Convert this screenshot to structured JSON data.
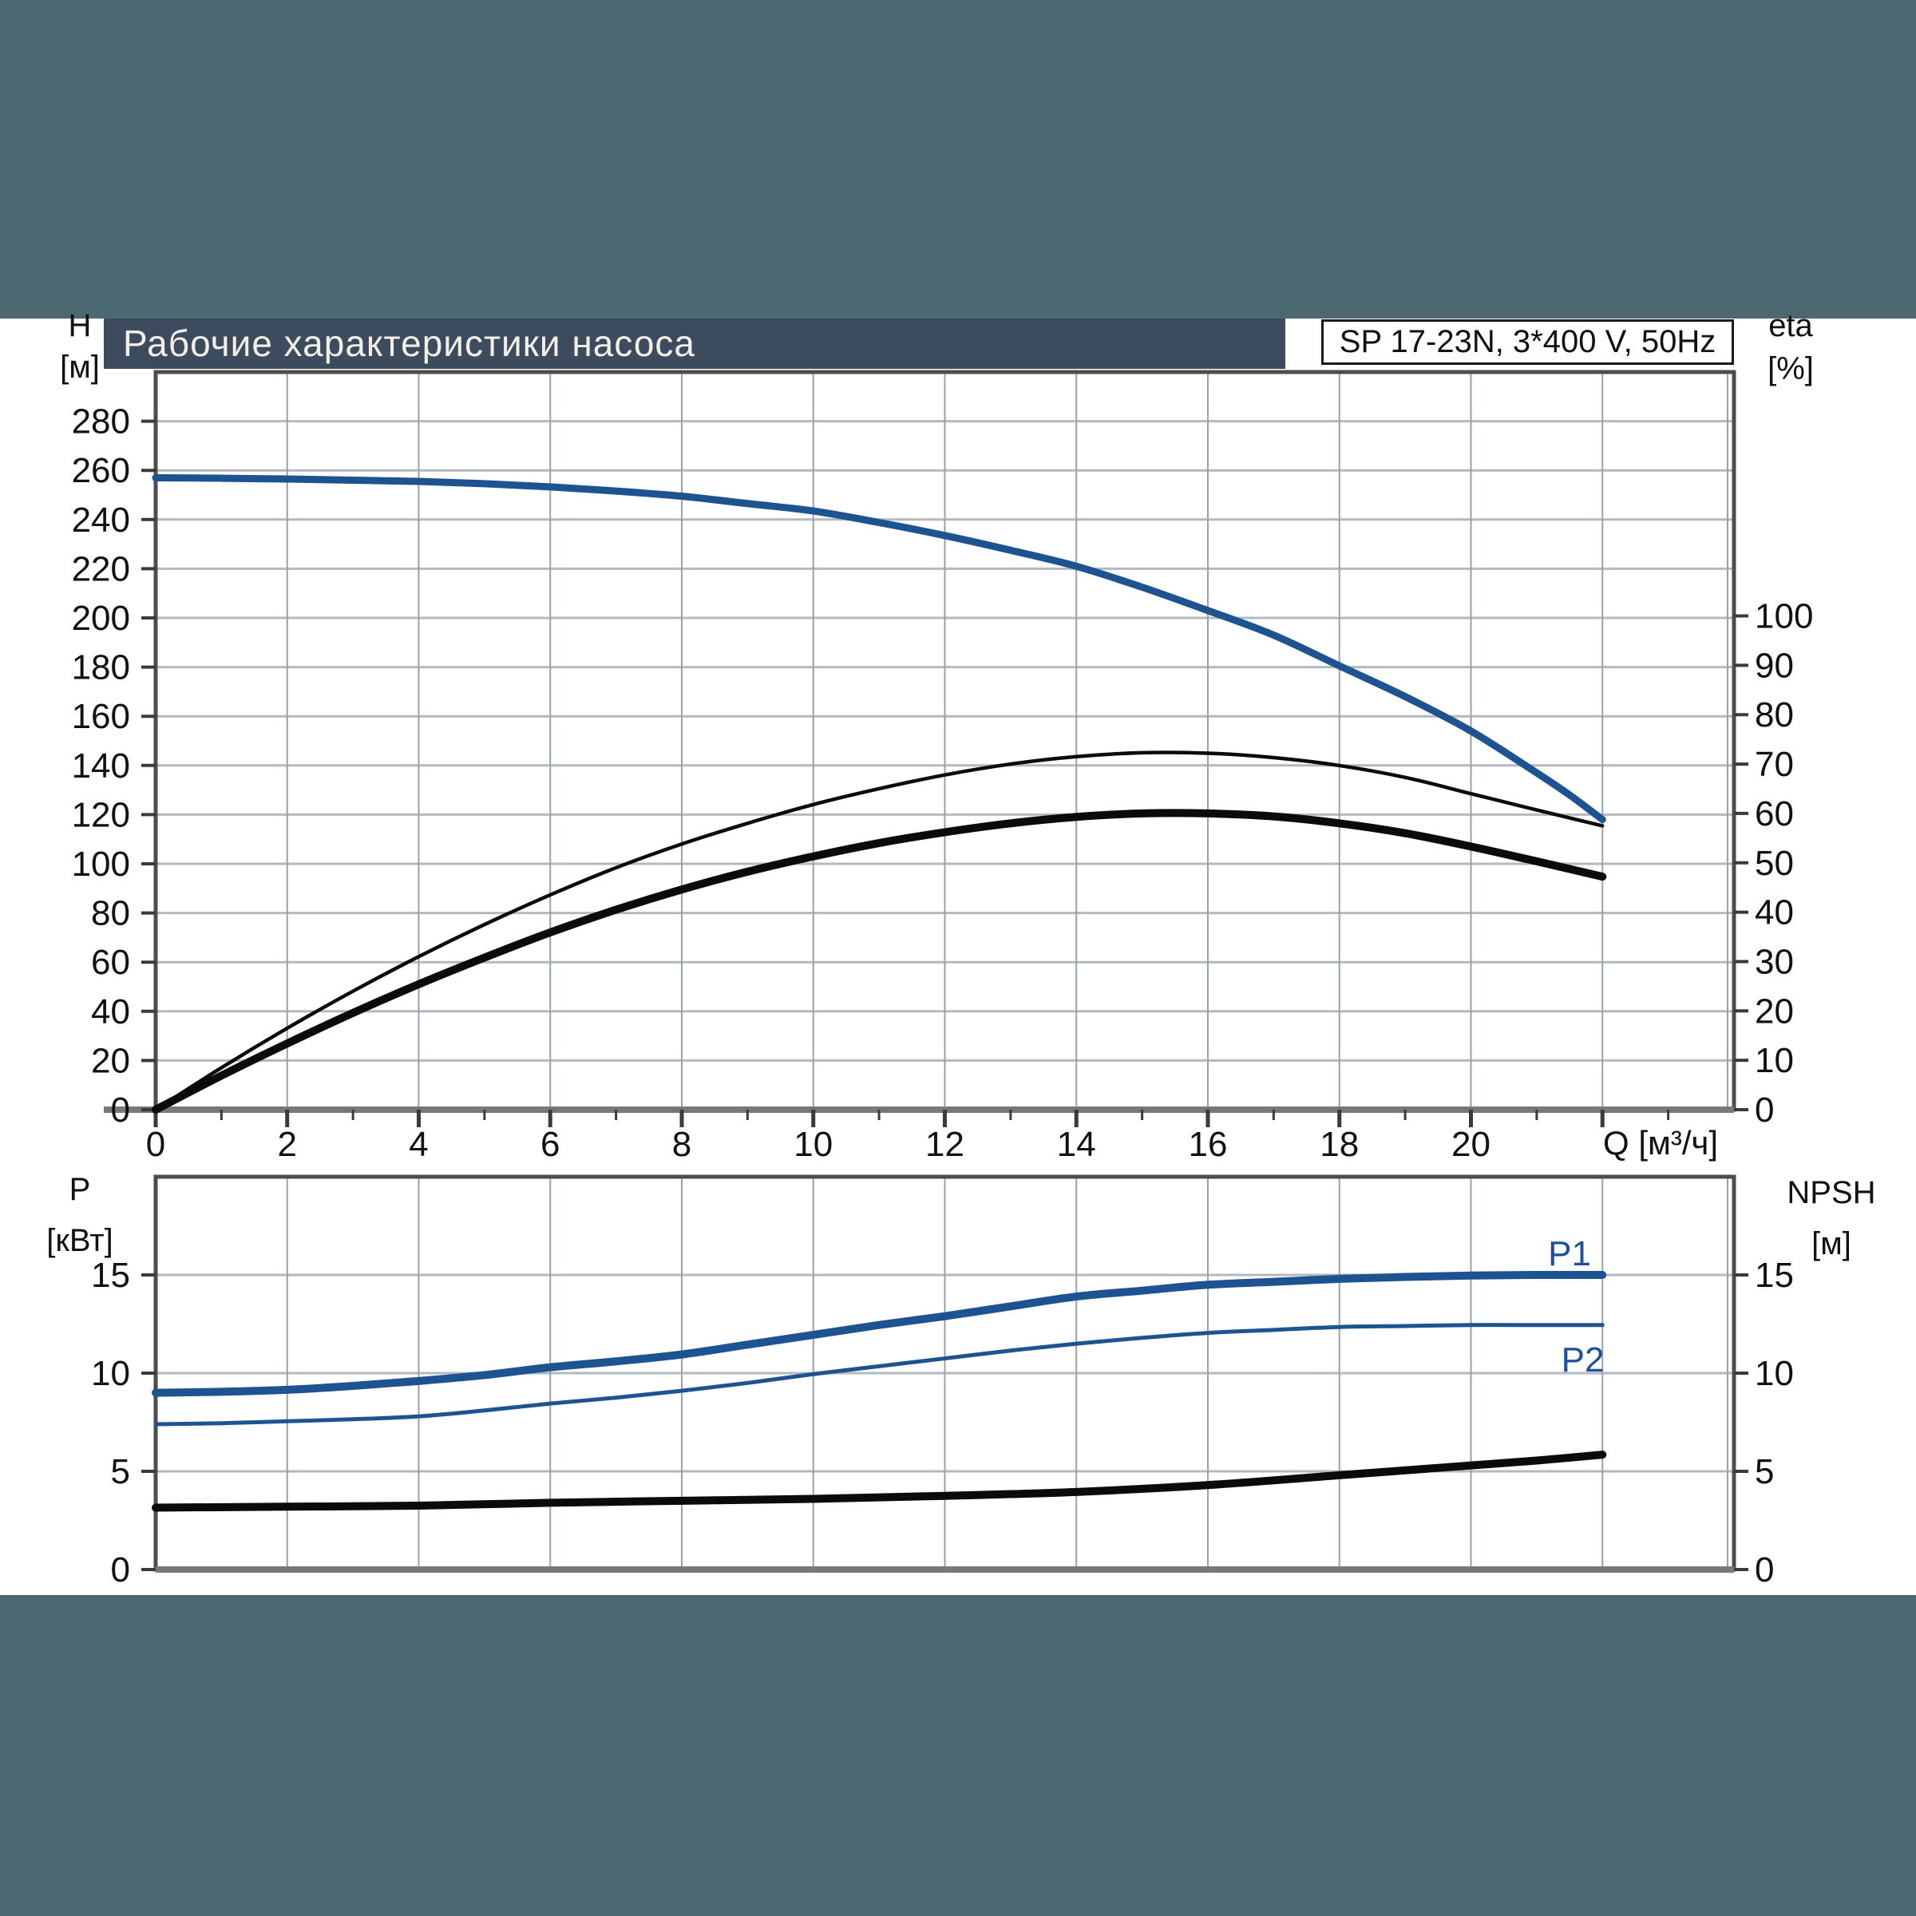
{
  "page": {
    "background_color": "#4c6871",
    "panel_color": "#ffffff"
  },
  "header": {
    "title": "Рабочие характеристики насоса",
    "title_bg": "#3c4b5e",
    "title_color": "#f3efe7",
    "model": "SP 17-23N, 3*400 V, 50Hz"
  },
  "colors": {
    "curve_blue": "#1d5390",
    "curve_black": "#0b0b0b",
    "label_blue": "#1d4f9a",
    "grid_h": "#b3b9bf",
    "grid_v": "#9aa1a9",
    "frame": "#4d4d4d",
    "axis_gray": "#787878",
    "tick": "#3a3a3a",
    "text": "#111111"
  },
  "chart_data": [
    {
      "id": "pump-performance",
      "type": "line",
      "x_axis": {
        "label": "Q [м³/ч]",
        "min": 0,
        "max": 24,
        "labeled_ticks": [
          0,
          2,
          4,
          6,
          8,
          10,
          12,
          14,
          16,
          18,
          20
        ],
        "major_ticks": [
          0,
          2,
          4,
          6,
          8,
          10,
          12,
          14,
          16,
          18,
          20,
          22
        ],
        "minor_ticks": [
          1,
          3,
          5,
          7,
          9,
          11,
          13,
          15,
          17,
          19,
          21,
          23
        ],
        "gridlines": [
          2,
          4,
          6,
          8,
          10,
          12,
          14,
          16,
          18,
          20,
          22
        ],
        "grid_on": true
      },
      "y_left": {
        "label": "H",
        "unit": "[м]",
        "min": 0,
        "max": 300,
        "ticks": [
          0,
          20,
          40,
          60,
          80,
          100,
          120,
          140,
          160,
          180,
          200,
          220,
          240,
          260,
          280
        ],
        "gridlines": [
          20,
          40,
          60,
          80,
          100,
          120,
          140,
          160,
          180,
          200,
          220,
          240,
          260,
          280
        ]
      },
      "y_right": {
        "label": "eta",
        "unit": "[%]",
        "min": 0,
        "max": 149.4,
        "ticks": [
          0,
          10,
          20,
          30,
          40,
          50,
          60,
          70,
          80,
          90,
          100
        ]
      },
      "series": [
        {
          "name": "head-curve",
          "axis": "left",
          "color": "#1d5390",
          "width": 9,
          "points": [
            [
              0,
              257
            ],
            [
              1,
              256.8
            ],
            [
              2,
              256.5
            ],
            [
              3,
              256
            ],
            [
              4,
              255.5
            ],
            [
              5,
              254.6
            ],
            [
              6,
              253.3
            ],
            [
              7,
              251.6
            ],
            [
              8,
              249.5
            ],
            [
              9,
              246.5
            ],
            [
              10,
              243.5
            ],
            [
              11,
              238.8
            ],
            [
              12,
              233.5
            ],
            [
              13,
              227.5
            ],
            [
              14,
              221
            ],
            [
              15,
              212.5
            ],
            [
              16,
              203
            ],
            [
              17,
              193
            ],
            [
              18,
              180.5
            ],
            [
              19,
              168
            ],
            [
              20,
              154
            ],
            [
              21,
              137
            ],
            [
              21.5,
              128
            ],
            [
              22,
              118
            ]
          ]
        },
        {
          "name": "eta-pump-curve",
          "axis": "right",
          "color": "#0b0b0b",
          "width": 4.5,
          "points": [
            [
              0,
              0
            ],
            [
              1,
              8.5
            ],
            [
              2,
              16.5
            ],
            [
              3,
              24
            ],
            [
              4,
              31
            ],
            [
              5,
              37.5
            ],
            [
              6,
              43.5
            ],
            [
              7,
              49
            ],
            [
              8,
              53.8
            ],
            [
              9,
              58
            ],
            [
              10,
              61.8
            ],
            [
              11,
              65
            ],
            [
              12,
              67.8
            ],
            [
              13,
              70
            ],
            [
              14,
              71.5
            ],
            [
              15,
              72.3
            ],
            [
              16,
              72.2
            ],
            [
              17,
              71.3
            ],
            [
              18,
              69.7
            ],
            [
              19,
              67.3
            ],
            [
              20,
              64
            ],
            [
              21,
              60.7
            ],
            [
              22,
              57.5
            ]
          ]
        },
        {
          "name": "eta-total-curve",
          "axis": "right",
          "color": "#0b0b0b",
          "width": 10,
          "points": [
            [
              0,
              0
            ],
            [
              1,
              6.9
            ],
            [
              2,
              13.4
            ],
            [
              3,
              19.6
            ],
            [
              4,
              25.4
            ],
            [
              5,
              30.8
            ],
            [
              6,
              35.9
            ],
            [
              7,
              40.5
            ],
            [
              8,
              44.6
            ],
            [
              9,
              48.2
            ],
            [
              10,
              51.3
            ],
            [
              11,
              54
            ],
            [
              12,
              56.2
            ],
            [
              13,
              58
            ],
            [
              14,
              59.3
            ],
            [
              15,
              60
            ],
            [
              16,
              60
            ],
            [
              17,
              59.4
            ],
            [
              18,
              58
            ],
            [
              19,
              56
            ],
            [
              20,
              53.3
            ],
            [
              21,
              50.3
            ],
            [
              22,
              47.2
            ]
          ]
        }
      ]
    },
    {
      "id": "power-npsh",
      "type": "line",
      "x_axis": {
        "label": "",
        "min": 0,
        "max": 24,
        "labeled_ticks": [],
        "major_ticks": [],
        "minor_ticks": [],
        "gridlines": [
          2,
          4,
          6,
          8,
          10,
          12,
          14,
          16,
          18,
          20,
          22
        ],
        "grid_on": true
      },
      "y_left": {
        "label": "P",
        "unit": "[кВт]",
        "min": 0,
        "max": 20,
        "ticks": [
          0,
          5,
          10,
          15
        ],
        "gridlines": [
          5,
          10,
          15
        ]
      },
      "y_right": {
        "label": "NPSH",
        "unit": "[м]",
        "min": 0,
        "max": 20,
        "ticks": [
          0,
          5,
          10,
          15
        ]
      },
      "series": [
        {
          "name": "p1-curve",
          "axis": "left",
          "color": "#1d5390",
          "width": 10,
          "curve_label": {
            "text": "P1",
            "q": 21.5,
            "v": 16.1
          },
          "points": [
            [
              0,
              9.0
            ],
            [
              1,
              9.05
            ],
            [
              2,
              9.15
            ],
            [
              3,
              9.35
            ],
            [
              4,
              9.6
            ],
            [
              5,
              9.9
            ],
            [
              6,
              10.3
            ],
            [
              7,
              10.6
            ],
            [
              8,
              10.95
            ],
            [
              9,
              11.45
            ],
            [
              10,
              11.95
            ],
            [
              11,
              12.45
            ],
            [
              12,
              12.9
            ],
            [
              13,
              13.4
            ],
            [
              14,
              13.9
            ],
            [
              15,
              14.2
            ],
            [
              16,
              14.5
            ],
            [
              17,
              14.65
            ],
            [
              18,
              14.8
            ],
            [
              19,
              14.9
            ],
            [
              20,
              14.97
            ],
            [
              21,
              15.0
            ],
            [
              22,
              15.0
            ]
          ]
        },
        {
          "name": "p2-curve",
          "axis": "left",
          "color": "#1d5390",
          "width": 5,
          "curve_label": {
            "text": "P2",
            "q": 21.7,
            "v": 10.7
          },
          "points": [
            [
              0,
              7.4
            ],
            [
              1,
              7.45
            ],
            [
              2,
              7.55
            ],
            [
              3,
              7.65
            ],
            [
              4,
              7.8
            ],
            [
              5,
              8.1
            ],
            [
              6,
              8.45
            ],
            [
              7,
              8.75
            ],
            [
              8,
              9.1
            ],
            [
              9,
              9.5
            ],
            [
              10,
              9.95
            ],
            [
              11,
              10.35
            ],
            [
              12,
              10.75
            ],
            [
              13,
              11.15
            ],
            [
              14,
              11.5
            ],
            [
              15,
              11.8
            ],
            [
              16,
              12.05
            ],
            [
              17,
              12.2
            ],
            [
              18,
              12.35
            ],
            [
              19,
              12.4
            ],
            [
              20,
              12.45
            ],
            [
              21,
              12.45
            ],
            [
              22,
              12.45
            ]
          ]
        },
        {
          "name": "npsh-curve",
          "axis": "right",
          "color": "#0b0b0b",
          "width": 10,
          "points": [
            [
              0,
              3.15
            ],
            [
              2,
              3.2
            ],
            [
              4,
              3.25
            ],
            [
              6,
              3.4
            ],
            [
              8,
              3.5
            ],
            [
              10,
              3.6
            ],
            [
              12,
              3.75
            ],
            [
              14,
              3.95
            ],
            [
              16,
              4.3
            ],
            [
              18,
              4.8
            ],
            [
              19,
              5.05
            ],
            [
              20,
              5.3
            ],
            [
              21,
              5.55
            ],
            [
              22,
              5.85
            ]
          ]
        }
      ]
    }
  ]
}
